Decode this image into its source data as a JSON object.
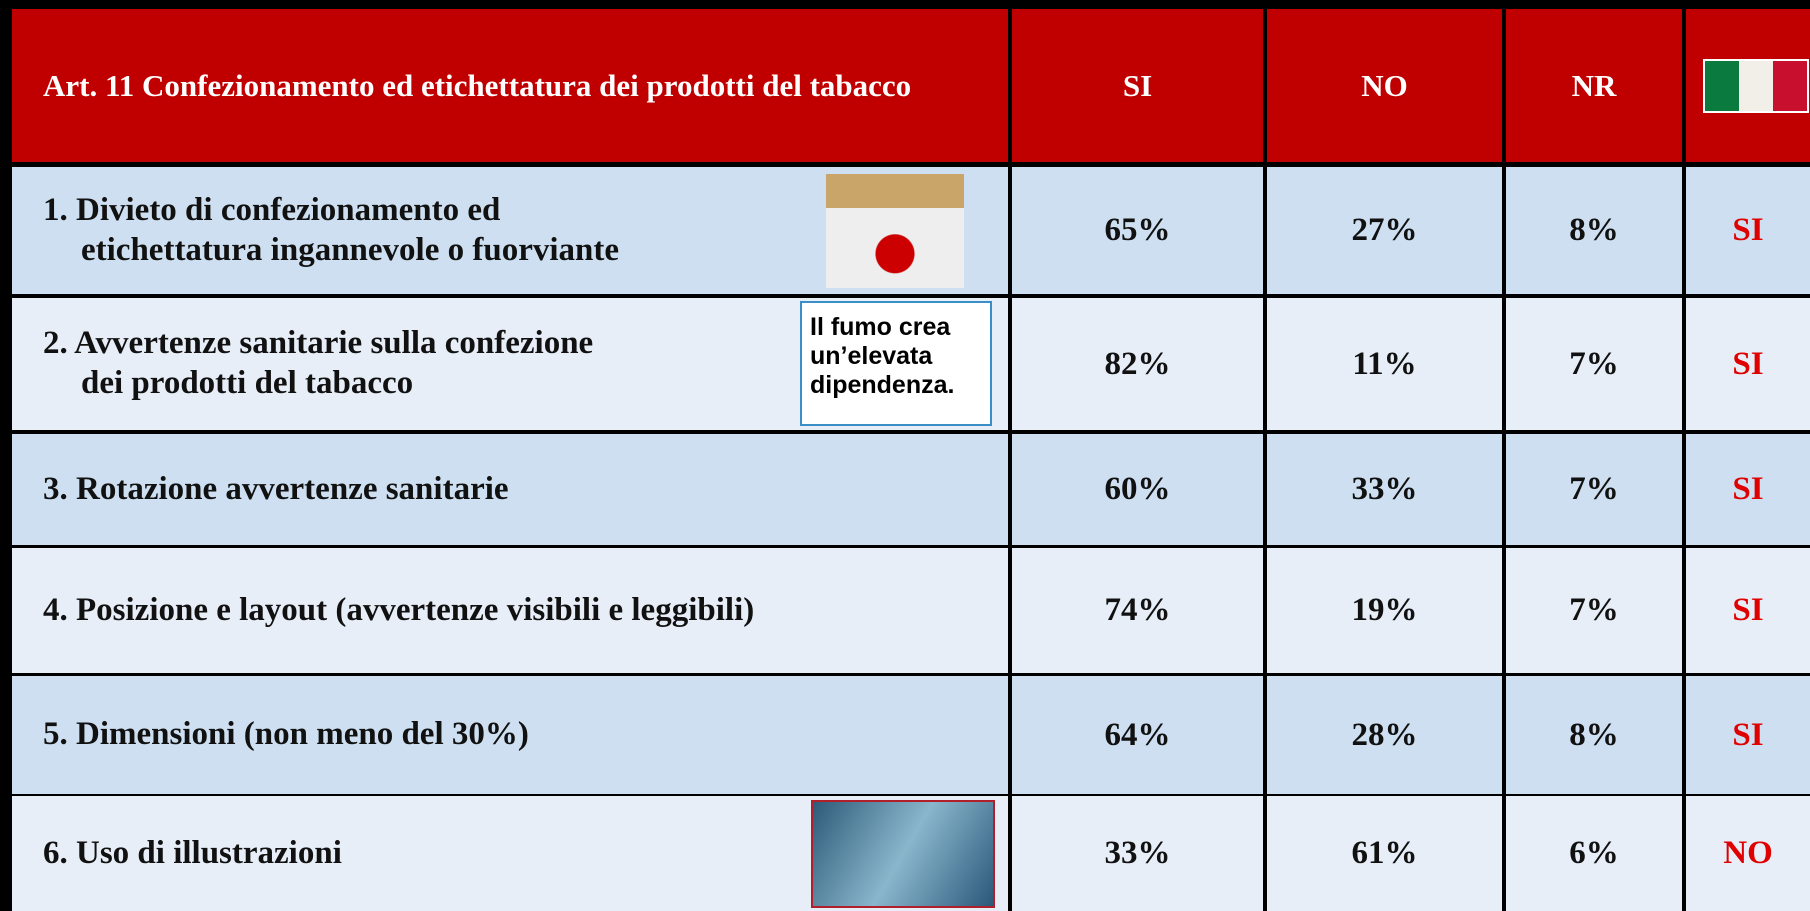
{
  "header": {
    "title": "Art. 11  Confezionamento ed etichettatura dei  prodotti del tabacco",
    "columns": [
      "SI",
      "NO",
      "NR"
    ]
  },
  "table": {
    "rows": [
      {
        "label": [
          "1. Divieto di confezionamento ed",
          "etichettatura ingannevole o fuorviante"
        ],
        "cells": [
          "65%",
          "27%",
          "8%"
        ],
        "italy": "SI"
      },
      {
        "label": [
          "2. Avvertenze sanitarie sulla confezione",
          "dei prodotti del tabacco"
        ],
        "cells": [
          "82%",
          "11%",
          "7%"
        ],
        "italy": "SI",
        "image_text": [
          "Il fumo crea",
          "un’elevata",
          "dipendenza."
        ]
      },
      {
        "label": [
          "3. Rotazione avvertenze sanitarie"
        ],
        "cells": [
          "60%",
          "33%",
          "7%"
        ],
        "italy": "SI"
      },
      {
        "label": [
          "4. Posizione e layout (avvertenze visibili e leggibili)"
        ],
        "cells": [
          "74%",
          "19%",
          "7%"
        ],
        "italy": "SI"
      },
      {
        "label": [
          "5. Dimensioni (non meno del 30%)"
        ],
        "cells": [
          "64%",
          "28%",
          "8%"
        ],
        "italy": "SI"
      },
      {
        "label": [
          "6. Uso di illustrazioni"
        ],
        "cells": [
          "33%",
          "61%",
          "6%"
        ],
        "italy": "NO"
      }
    ]
  }
}
